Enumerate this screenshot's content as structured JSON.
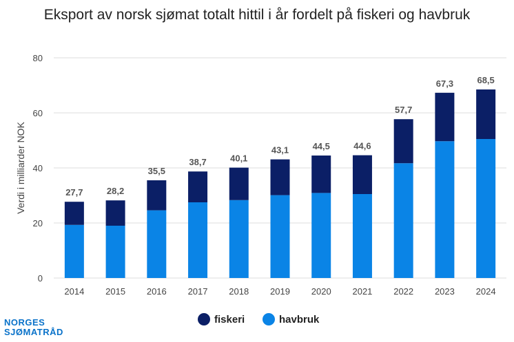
{
  "chart_data": {
    "type": "bar",
    "stacked": true,
    "title": "Eksport av norsk sjømat totalt hittil i år fordelt på fiskeri og havbruk",
    "ylabel": "Verdi i milliarder NOK",
    "xlabel": "",
    "ylim": [
      0,
      80
    ],
    "yticks": [
      0,
      20,
      40,
      60,
      80
    ],
    "grid": true,
    "legend_position": "bottom",
    "categories": [
      "2014",
      "2015",
      "2016",
      "2017",
      "2018",
      "2019",
      "2020",
      "2021",
      "2022",
      "2023",
      "2024"
    ],
    "series": [
      {
        "name": "havbruk",
        "color": "#0a84e6",
        "values": [
          19.3,
          19.0,
          24.6,
          27.5,
          28.3,
          30.1,
          30.9,
          30.5,
          41.7,
          49.7,
          50.5
        ]
      },
      {
        "name": "fiskeri",
        "color": "#0b1f66",
        "values": [
          8.4,
          9.2,
          10.9,
          11.2,
          11.8,
          13.0,
          13.6,
          14.1,
          16.0,
          17.6,
          18.0
        ]
      }
    ],
    "totals": [
      27.7,
      28.2,
      35.5,
      38.7,
      40.1,
      43.1,
      44.5,
      44.6,
      57.7,
      67.3,
      68.5
    ],
    "total_labels": [
      "27,7",
      "28,2",
      "35,5",
      "38,7",
      "40,1",
      "43,1",
      "44,5",
      "44,6",
      "57,7",
      "67,3",
      "68,5"
    ]
  },
  "legend": [
    {
      "label": "fiskeri",
      "color": "#0b1f66"
    },
    {
      "label": "havbruk",
      "color": "#0a84e6"
    }
  ],
  "logo": {
    "line1": "NORGES",
    "line2": "SJØMATRÅD"
  }
}
